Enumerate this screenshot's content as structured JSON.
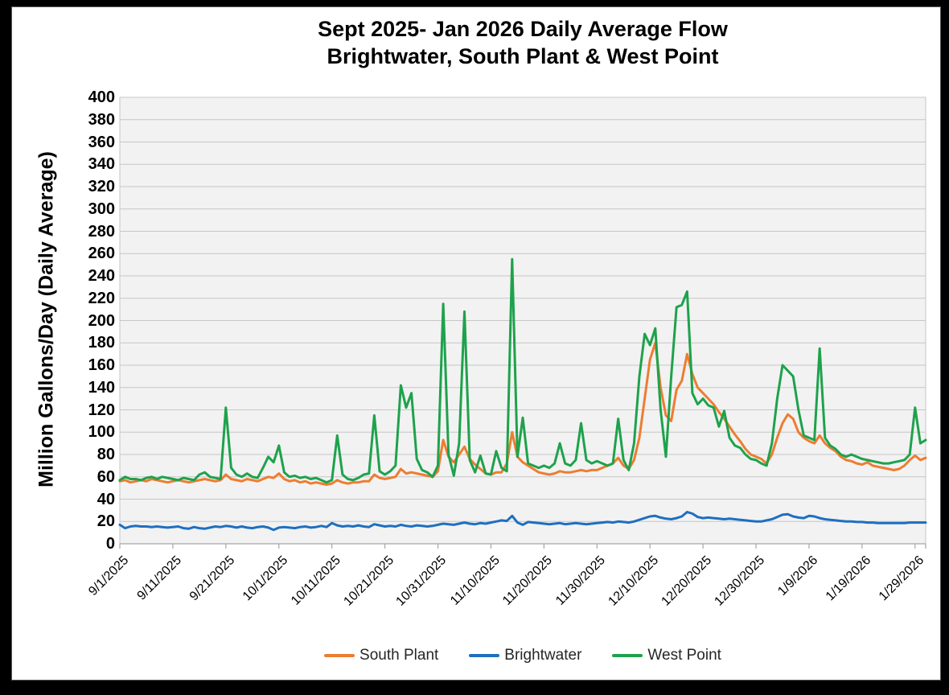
{
  "title": {
    "line1": "Sept 2025- Jan 2026 Daily Average Flow",
    "line2": "Brightwater, South Plant & West Point"
  },
  "y_axis": {
    "label": "Million Gallons/Day (Daily Average)",
    "min": 0,
    "max": 400,
    "step": 20
  },
  "x_axis": {
    "tick_labels": [
      "9/1/2025",
      "9/11/2025",
      "9/21/2025",
      "10/1/2025",
      "10/11/2025",
      "10/21/2025",
      "10/31/2025",
      "11/10/2025",
      "11/20/2025",
      "11/30/2025",
      "12/10/2025",
      "12/20/2025",
      "12/30/2025",
      "1/9/2026",
      "1/19/2026",
      "1/29/2026"
    ],
    "tick_interval_days": 10
  },
  "legend": [
    {
      "label": "South Plant",
      "color": "#ED7D31"
    },
    {
      "label": "Brightwater",
      "color": "#1E6FC0"
    },
    {
      "label": "West Point",
      "color": "#1EA24C"
    }
  ],
  "colors": {
    "plot_background": "#F2F2F2",
    "gridline": "#C6C6C6",
    "axis": "#A6A6A6",
    "south_plant": "#ED7D31",
    "brightwater": "#1E6FC0",
    "west_point": "#1EA24C"
  },
  "chart_data": {
    "type": "line",
    "title": "Sept 2025- Jan 2026 Daily Average Flow Brightwater, South Plant & West Point",
    "ylabel": "Million Gallons/Day (Daily Average)",
    "ylim": [
      0,
      400
    ],
    "y_step": 20,
    "grid": "horizontal",
    "legend_position": "bottom",
    "x_start": "9/1/2025",
    "x_end": "1/31/2026",
    "points_per_series": 153,
    "x_tick_labels": [
      "9/1/2025",
      "9/11/2025",
      "9/21/2025",
      "10/1/2025",
      "10/11/2025",
      "10/21/2025",
      "10/31/2025",
      "11/10/2025",
      "11/20/2025",
      "11/30/2025",
      "12/10/2025",
      "12/20/2025",
      "12/30/2025",
      "1/9/2026",
      "1/19/2026",
      "1/29/2026"
    ],
    "x_tick_day_indices": [
      0,
      10,
      20,
      30,
      40,
      50,
      60,
      70,
      80,
      90,
      100,
      110,
      120,
      130,
      140,
      150
    ],
    "series": [
      {
        "name": "South Plant",
        "color": "#ED7D31",
        "values": [
          56,
          57,
          55,
          56,
          57,
          56,
          58,
          57,
          56,
          55,
          56,
          57,
          56,
          55,
          56,
          57,
          58,
          57,
          56,
          57,
          62,
          58,
          57,
          56,
          58,
          57,
          56,
          58,
          60,
          59,
          63,
          58,
          56,
          57,
          55,
          56,
          54,
          55,
          54,
          53,
          54,
          57,
          55,
          54,
          55,
          55,
          56,
          56,
          62,
          59,
          58,
          59,
          60,
          67,
          63,
          64,
          63,
          62,
          61,
          60,
          65,
          93,
          78,
          73,
          80,
          87,
          76,
          71,
          67,
          63,
          62,
          64,
          64,
          72,
          100,
          78,
          73,
          70,
          67,
          64,
          63,
          62,
          63,
          65,
          64,
          64,
          65,
          66,
          65,
          66,
          66,
          68,
          70,
          72,
          77,
          70,
          67,
          75,
          95,
          130,
          165,
          180,
          140,
          115,
          110,
          138,
          146,
          170,
          152,
          140,
          135,
          130,
          125,
          118,
          112,
          105,
          98,
          92,
          85,
          80,
          78,
          76,
          72,
          80,
          95,
          108,
          116,
          112,
          100,
          95,
          92,
          90,
          97,
          90,
          86,
          83,
          78,
          75,
          74,
          72,
          71,
          73,
          70,
          69,
          68,
          67,
          66,
          67,
          70,
          75,
          79,
          75,
          77
        ]
      },
      {
        "name": "Brightwater",
        "color": "#1E6FC0",
        "values": [
          17,
          14,
          15.5,
          16,
          15.5,
          15.5,
          15,
          15.5,
          15,
          14.5,
          15,
          15.5,
          14,
          13.5,
          15,
          14,
          13.5,
          14.5,
          15.5,
          15,
          16,
          15.5,
          14.5,
          15.5,
          14.5,
          14,
          15,
          15.5,
          14.5,
          12.5,
          14.5,
          15,
          14.5,
          14,
          15,
          15.5,
          14.5,
          15,
          16,
          15,
          18.5,
          16.5,
          15.5,
          16,
          15.5,
          16.5,
          15.5,
          15,
          17.5,
          16.5,
          15.5,
          16,
          15.5,
          17,
          16,
          15.5,
          16.5,
          16,
          15.5,
          16,
          17,
          18,
          17.5,
          17,
          18,
          19,
          18,
          17.5,
          18.5,
          18,
          19,
          20,
          21,
          20.5,
          25,
          19,
          17,
          19.5,
          19,
          18.5,
          18,
          17.5,
          18,
          18.5,
          17.5,
          18,
          18.5,
          18,
          17.5,
          18,
          18.5,
          19,
          19.5,
          19,
          20,
          19.5,
          19,
          20,
          21.5,
          23,
          24.5,
          25,
          23.5,
          22.5,
          22,
          23,
          24.5,
          28.5,
          27,
          24,
          23,
          23.5,
          23,
          22.5,
          22,
          22.5,
          22,
          21.5,
          21,
          20.5,
          20,
          20,
          21,
          22,
          24,
          26,
          26.5,
          24.5,
          23.5,
          23,
          25,
          24.5,
          23,
          22,
          21.5,
          21,
          20.5,
          20,
          20,
          19.5,
          19.5,
          19,
          19,
          18.5,
          18.5,
          18.5,
          18.5,
          18.5,
          18.5,
          19,
          19,
          19,
          19
        ]
      },
      {
        "name": "West Point",
        "color": "#1EA24C",
        "values": [
          57,
          60,
          58,
          58,
          57,
          59,
          60,
          58,
          60,
          59,
          58,
          57,
          59,
          58,
          57,
          62,
          64,
          60,
          59,
          58,
          122,
          68,
          62,
          60,
          63,
          60,
          59,
          68,
          78,
          73,
          88,
          64,
          60,
          61,
          59,
          60,
          58,
          59,
          57,
          55,
          57,
          97,
          62,
          58,
          57,
          59,
          62,
          63,
          115,
          65,
          62,
          65,
          70,
          142,
          122,
          135,
          76,
          66,
          64,
          60,
          70,
          215,
          80,
          61,
          90,
          208,
          75,
          64,
          79,
          63,
          62,
          83,
          68,
          65,
          255,
          78,
          113,
          72,
          70,
          68,
          70,
          68,
          72,
          90,
          72,
          70,
          75,
          108,
          75,
          72,
          74,
          72,
          70,
          72,
          112,
          75,
          66,
          90,
          150,
          188,
          178,
          193,
          120,
          78,
          150,
          212,
          214,
          226,
          135,
          125,
          130,
          124,
          122,
          105,
          119,
          95,
          88,
          86,
          80,
          76,
          75,
          72,
          70,
          90,
          130,
          160,
          155,
          150,
          120,
          97,
          95,
          93,
          175,
          95,
          88,
          85,
          80,
          78,
          80,
          78,
          76,
          75,
          74,
          73,
          72,
          72,
          73,
          74,
          75,
          80,
          122,
          90,
          93
        ]
      }
    ]
  }
}
